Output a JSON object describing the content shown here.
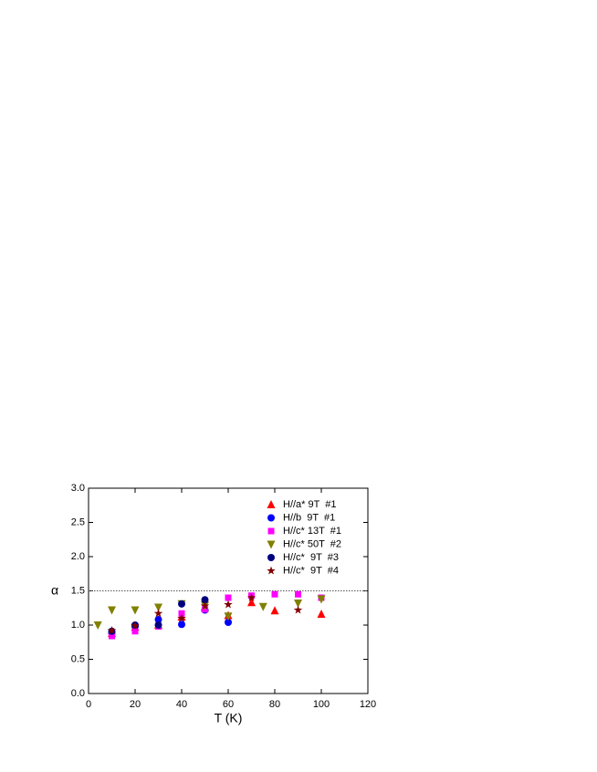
{
  "chart_data": {
    "type": "scatter",
    "x_label": "T (K)",
    "y_label": "α",
    "xlim": [
      0,
      120
    ],
    "xticks": [
      0,
      20,
      40,
      60,
      80,
      100,
      120
    ],
    "ylim": [
      0,
      3
    ],
    "yticks": [
      {
        "value": 0,
        "label": "0.0"
      },
      {
        "value": 0.5,
        "label": "0.5"
      },
      {
        "value": 1,
        "label": "1.0"
      },
      {
        "value": 1.5,
        "label": "1.5"
      },
      {
        "value": 2,
        "label": "2.0"
      },
      {
        "value": 2.5,
        "label": "2.5"
      },
      {
        "value": 3,
        "label": "3.0"
      }
    ],
    "reference_line": 1.5,
    "legend": "upper right",
    "series": [
      {
        "name": "H//a* 9T  #1",
        "color": "#ff0000",
        "marker": "triangle-up",
        "x": [
          10,
          20,
          30,
          40,
          50,
          60,
          70,
          80,
          100
        ],
        "values": [
          0.88,
          0.97,
          1.0,
          1.12,
          1.25,
          1.14,
          1.33,
          1.21,
          1.16
        ]
      },
      {
        "name": "H//b  9T  #1",
        "color": "#0000ff",
        "marker": "circle",
        "x": [
          10,
          20,
          30,
          40,
          50,
          60
        ],
        "values": [
          0.88,
          0.98,
          1.08,
          1.01,
          1.22,
          1.04
        ]
      },
      {
        "name": "H//c* 13T  #1",
        "color": "#ff00ff",
        "marker": "square",
        "x": [
          10,
          20,
          30,
          40,
          50,
          60,
          70,
          80,
          90,
          100
        ],
        "values": [
          0.84,
          0.91,
          0.98,
          1.17,
          1.23,
          1.4,
          1.43,
          1.45,
          1.45,
          1.4
        ]
      },
      {
        "name": "H//c* 50T  #2",
        "color": "#808000",
        "marker": "triangle-down",
        "x": [
          4,
          10,
          20,
          30,
          40,
          50,
          60,
          75,
          90,
          100
        ],
        "values": [
          1.0,
          1.22,
          1.22,
          1.26,
          1.31,
          1.29,
          1.13,
          1.27,
          1.32,
          1.38
        ]
      },
      {
        "name": "H//c*  9T  #3",
        "color": "#000080",
        "marker": "circle",
        "x": [
          10,
          20,
          30,
          40,
          50
        ],
        "values": [
          0.91,
          1.0,
          1.0,
          1.31,
          1.37
        ]
      },
      {
        "name": "H//c*  9T  #4",
        "color": "#800000",
        "marker": "star",
        "x": [
          10,
          20,
          30,
          40,
          50,
          60,
          70,
          90
        ],
        "values": [
          0.92,
          0.99,
          1.17,
          1.1,
          1.28,
          1.3,
          1.4,
          1.22
        ]
      }
    ]
  }
}
